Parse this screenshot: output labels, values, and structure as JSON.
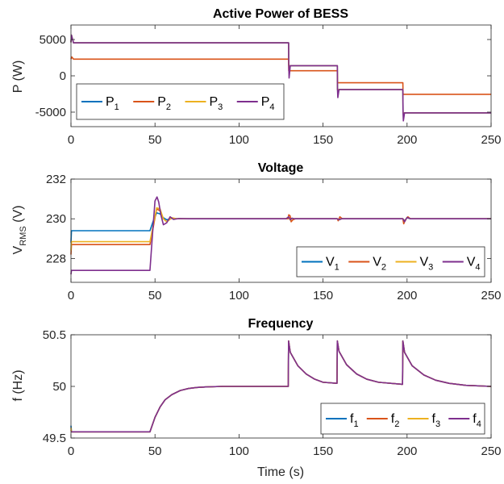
{
  "chart_data": [
    {
      "type": "line",
      "title": "Active Power of BESS",
      "ylabel_main": "P (W)",
      "ylabel_sub": "",
      "xlim": [
        0,
        250
      ],
      "ylim": [
        -7000,
        7000
      ],
      "xticks": [
        0,
        50,
        100,
        150,
        200,
        250
      ],
      "yticks": [
        -5000,
        0,
        5000
      ],
      "xtick_labels": [
        "0",
        "50",
        "100",
        "150",
        "200",
        "250"
      ],
      "ytick_labels": [
        "-5000",
        "0",
        "5000"
      ],
      "legend_position": "bottom-left",
      "series": [
        {
          "name": "P",
          "sub": "1",
          "color": "#0072BD",
          "x": [
            0,
            0.3,
            1.5,
            129.5,
            129.6,
            158.5,
            158.6,
            197.5,
            197.6,
            250
          ],
          "y": [
            4600,
            5600,
            4550,
            4550,
            1400,
            1400,
            -1900,
            -1900,
            -5100,
            -5100
          ]
        },
        {
          "name": "P",
          "sub": "2",
          "color": "#D95319",
          "x": [
            0,
            0.5,
            1.5,
            129.5,
            129.6,
            158.5,
            158.6,
            197.5,
            197.6,
            250
          ],
          "y": [
            2300,
            2600,
            2300,
            2300,
            700,
            700,
            -950,
            -950,
            -2550,
            -2550
          ]
        },
        {
          "name": "P",
          "sub": "3",
          "color": "#EDB120",
          "x": [
            0,
            0.3,
            1.5,
            129.5,
            129.6,
            158.5,
            158.6,
            197.5,
            197.6,
            250
          ],
          "y": [
            4600,
            5600,
            4550,
            4550,
            1400,
            1400,
            -1900,
            -1900,
            -5100,
            -5100
          ]
        },
        {
          "name": "P",
          "sub": "4",
          "color": "#7E2F8E",
          "x": [
            0,
            0.3,
            1.5,
            129.5,
            129.6,
            129.8,
            130.5,
            158.5,
            158.6,
            158.8,
            159.5,
            197.5,
            197.6,
            197.8,
            198.5,
            250
          ],
          "y": [
            4600,
            5600,
            4550,
            4550,
            1400,
            -300,
            1400,
            1400,
            -1900,
            -3000,
            -1900,
            -1900,
            -5100,
            -6200,
            -5100,
            -5100
          ]
        }
      ]
    },
    {
      "type": "line",
      "title": "Voltage",
      "ylabel_main": "V",
      "ylabel_sub": "RMS",
      "ylabel_suffix": " (V)",
      "xlim": [
        0,
        250
      ],
      "ylim": [
        226.8,
        232
      ],
      "xticks": [
        0,
        50,
        100,
        150,
        200,
        250
      ],
      "yticks": [
        228,
        230,
        232
      ],
      "xtick_labels": [
        "0",
        "50",
        "100",
        "150",
        "200",
        "250"
      ],
      "ytick_labels": [
        "228",
        "230",
        "232"
      ],
      "legend_position": "bottom-right",
      "series": [
        {
          "name": "V",
          "sub": "1",
          "color": "#0072BD",
          "x": [
            0,
            0.3,
            47,
            49,
            51,
            53,
            55,
            57,
            60,
            63,
            70,
            128,
            129.5,
            130.5,
            131.5,
            133,
            158.5,
            159.5,
            161,
            197.5,
            198.5,
            200,
            202,
            250
          ],
          "y": [
            228.8,
            229.4,
            229.4,
            229.9,
            230.3,
            230.25,
            230.05,
            229.95,
            230.02,
            230,
            230,
            230,
            230.05,
            229.98,
            230.02,
            230,
            230,
            229.97,
            230,
            230,
            229.9,
            230.05,
            230,
            230
          ]
        },
        {
          "name": "V",
          "sub": "2",
          "color": "#D95319",
          "x": [
            0,
            0.3,
            47,
            49,
            51,
            53,
            55,
            57,
            60,
            63,
            70,
            129.2,
            129.6,
            130.4,
            131,
            132,
            133.5,
            158.5,
            159,
            160,
            161.5,
            197.5,
            198,
            199,
            200.5,
            202,
            250
          ],
          "y": [
            228.2,
            228.7,
            228.7,
            229.6,
            230.5,
            230.4,
            230.0,
            229.85,
            230.05,
            230,
            230,
            230,
            230.2,
            230.15,
            229.85,
            229.95,
            230,
            230,
            229.9,
            230.1,
            230,
            230,
            229.75,
            229.95,
            230.1,
            230,
            230
          ]
        },
        {
          "name": "V",
          "sub": "3",
          "color": "#EDB120",
          "x": [
            0,
            0.3,
            47,
            49,
            51,
            53,
            55,
            57,
            60,
            63,
            70,
            128,
            129.5,
            130.5,
            131.5,
            133,
            158.5,
            159.5,
            161,
            197.5,
            198.5,
            200,
            202,
            250
          ],
          "y": [
            228.4,
            228.85,
            228.85,
            229.7,
            230.55,
            230.5,
            230.0,
            229.85,
            230.05,
            230,
            230,
            230,
            230.1,
            229.93,
            230.03,
            230,
            230,
            229.95,
            230,
            230,
            229.85,
            230.07,
            230,
            230
          ]
        },
        {
          "name": "V",
          "sub": "4",
          "color": "#7E2F8E",
          "x": [
            0,
            0.3,
            47,
            48.5,
            50,
            51.2,
            52.2,
            53.5,
            55,
            57,
            59,
            61,
            64,
            70,
            128,
            129.5,
            130.5,
            131.5,
            133,
            158.5,
            159.5,
            161,
            197.5,
            198.5,
            200,
            202,
            250
          ],
          "y": [
            227.2,
            227.4,
            227.4,
            229.2,
            230.9,
            231.1,
            230.85,
            230.2,
            229.7,
            229.8,
            230.1,
            229.97,
            230.01,
            230,
            230,
            230.1,
            229.95,
            230.03,
            230,
            230,
            229.95,
            230,
            230,
            229.85,
            230.07,
            230,
            230
          ]
        }
      ]
    },
    {
      "type": "line",
      "title": "Frequency",
      "ylabel_main": "f (Hz)",
      "ylabel_sub": "",
      "xlim": [
        0,
        250
      ],
      "ylim": [
        49.5,
        50.5
      ],
      "xticks": [
        0,
        50,
        100,
        150,
        200,
        250
      ],
      "yticks": [
        49.5,
        50,
        50.5
      ],
      "xtick_labels": [
        "0",
        "50",
        "100",
        "150",
        "200",
        "250"
      ],
      "ytick_labels": [
        "49.5",
        "50",
        "50.5"
      ],
      "xlabel": "Time (s)",
      "legend_position": "bottom-right",
      "series": [
        {
          "name": "f",
          "sub": "1",
          "color": "#0072BD",
          "x": [
            0,
            0.3,
            1,
            47,
            50,
            53,
            56,
            60,
            65,
            70,
            75,
            80,
            90,
            100,
            129.3,
            129.5,
            130.5,
            135,
            140,
            145,
            150,
            158.3,
            158.5,
            159.5,
            164,
            170,
            176,
            183,
            197.3,
            197.5,
            198.5,
            203,
            210,
            217,
            225,
            235,
            250
          ],
          "y": [
            49.62,
            49.56,
            49.56,
            49.56,
            49.7,
            49.8,
            49.87,
            49.92,
            49.96,
            49.98,
            49.99,
            49.995,
            50.0,
            50.0,
            50.0,
            50.44,
            50.33,
            50.2,
            50.12,
            50.07,
            50.04,
            50.03,
            50.44,
            50.34,
            50.21,
            50.12,
            50.07,
            50.04,
            50.02,
            50.44,
            50.33,
            50.2,
            50.11,
            50.06,
            50.03,
            50.01,
            50.0
          ]
        },
        {
          "name": "f",
          "sub": "2",
          "color": "#D95319",
          "x": [
            0,
            0.3,
            1,
            47,
            50,
            53,
            56,
            60,
            65,
            70,
            75,
            80,
            90,
            100,
            129.3,
            129.5,
            130.5,
            135,
            140,
            145,
            150,
            158.3,
            158.5,
            159.5,
            164,
            170,
            176,
            183,
            197.3,
            197.5,
            198.5,
            203,
            210,
            217,
            225,
            235,
            250
          ],
          "y": [
            49.58,
            49.56,
            49.56,
            49.56,
            49.7,
            49.8,
            49.87,
            49.92,
            49.96,
            49.98,
            49.99,
            49.995,
            50.0,
            50.0,
            50.0,
            50.44,
            50.33,
            50.2,
            50.12,
            50.07,
            50.04,
            50.03,
            50.44,
            50.34,
            50.21,
            50.12,
            50.07,
            50.04,
            50.02,
            50.44,
            50.33,
            50.2,
            50.11,
            50.06,
            50.03,
            50.01,
            50.0
          ]
        },
        {
          "name": "f",
          "sub": "3",
          "color": "#EDB120",
          "x": [
            0,
            0.3,
            1,
            47,
            50,
            53,
            56,
            60,
            65,
            70,
            75,
            80,
            90,
            100,
            129.3,
            129.5,
            130.5,
            135,
            140,
            145,
            150,
            158.3,
            158.5,
            159.5,
            164,
            170,
            176,
            183,
            197.3,
            197.5,
            198.5,
            203,
            210,
            217,
            225,
            235,
            250
          ],
          "y": [
            49.6,
            49.56,
            49.56,
            49.56,
            49.7,
            49.8,
            49.87,
            49.92,
            49.96,
            49.98,
            49.99,
            49.995,
            50.0,
            50.0,
            50.0,
            50.44,
            50.33,
            50.2,
            50.12,
            50.07,
            50.04,
            50.03,
            50.44,
            50.34,
            50.21,
            50.12,
            50.07,
            50.04,
            50.02,
            50.44,
            50.33,
            50.2,
            50.11,
            50.06,
            50.03,
            50.01,
            50.0
          ]
        },
        {
          "name": "f",
          "sub": "4",
          "color": "#7E2F8E",
          "x": [
            0,
            0.3,
            1,
            47,
            50,
            53,
            56,
            60,
            65,
            70,
            75,
            80,
            90,
            100,
            129.3,
            129.5,
            130.5,
            135,
            140,
            145,
            150,
            158.3,
            158.5,
            159.5,
            164,
            170,
            176,
            183,
            197.3,
            197.5,
            198.5,
            203,
            210,
            217,
            225,
            235,
            250
          ],
          "y": [
            49.56,
            49.56,
            49.56,
            49.56,
            49.7,
            49.8,
            49.87,
            49.92,
            49.96,
            49.98,
            49.99,
            49.995,
            50.0,
            50.0,
            50.0,
            50.44,
            50.33,
            50.2,
            50.12,
            50.07,
            50.04,
            50.03,
            50.44,
            50.34,
            50.21,
            50.12,
            50.07,
            50.04,
            50.02,
            50.44,
            50.33,
            50.2,
            50.11,
            50.06,
            50.03,
            50.01,
            50.0
          ]
        }
      ]
    }
  ]
}
